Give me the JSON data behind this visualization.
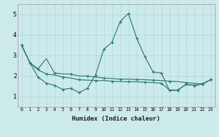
{
  "xlabel": "Humidex (Indice chaleur)",
  "background_color": "#cdeaea",
  "line_color": "#2e7d72",
  "grid_color": "#aed4d4",
  "xlim": [
    -0.5,
    23.5
  ],
  "ylim": [
    0.5,
    5.5
  ],
  "xticks": [
    0,
    1,
    2,
    3,
    4,
    5,
    6,
    7,
    8,
    9,
    10,
    11,
    12,
    13,
    14,
    15,
    16,
    17,
    18,
    19,
    20,
    21,
    22,
    23
  ],
  "yticks": [
    1,
    2,
    3,
    4,
    5
  ],
  "line1_x": [
    0,
    1,
    2,
    3,
    4,
    5,
    6,
    7,
    8,
    9,
    10,
    11,
    12,
    13,
    14,
    15,
    16,
    17,
    18,
    19,
    20,
    21,
    22,
    23
  ],
  "line1_y": [
    3.5,
    2.65,
    2.35,
    2.85,
    2.15,
    2.1,
    2.1,
    2.0,
    2.0,
    1.95,
    1.9,
    1.88,
    1.85,
    1.85,
    1.83,
    1.82,
    1.8,
    1.78,
    1.75,
    1.73,
    1.68,
    1.65,
    1.62,
    1.82
  ],
  "line2_x": [
    0,
    1,
    2,
    3,
    4,
    5,
    6,
    7,
    8,
    9,
    10,
    11,
    12,
    13,
    14,
    15,
    16,
    17,
    18,
    19,
    20,
    21,
    22,
    23
  ],
  "line2_y": [
    3.5,
    2.65,
    1.95,
    1.65,
    1.55,
    1.35,
    1.4,
    1.2,
    1.4,
    2.05,
    3.3,
    3.65,
    4.65,
    5.05,
    3.85,
    2.95,
    2.2,
    2.15,
    1.3,
    1.3,
    1.6,
    1.55,
    1.6,
    1.82
  ],
  "line3_x": [
    0,
    1,
    2,
    3,
    4,
    5,
    6,
    7,
    8,
    9,
    10,
    11,
    12,
    13,
    14,
    15,
    16,
    17,
    18,
    19,
    20,
    21,
    22,
    23
  ],
  "line3_y": [
    3.5,
    2.65,
    2.3,
    2.1,
    2.05,
    1.95,
    1.9,
    1.82,
    1.8,
    1.78,
    1.78,
    1.75,
    1.73,
    1.72,
    1.72,
    1.7,
    1.68,
    1.65,
    1.32,
    1.32,
    1.58,
    1.55,
    1.6,
    1.82
  ]
}
